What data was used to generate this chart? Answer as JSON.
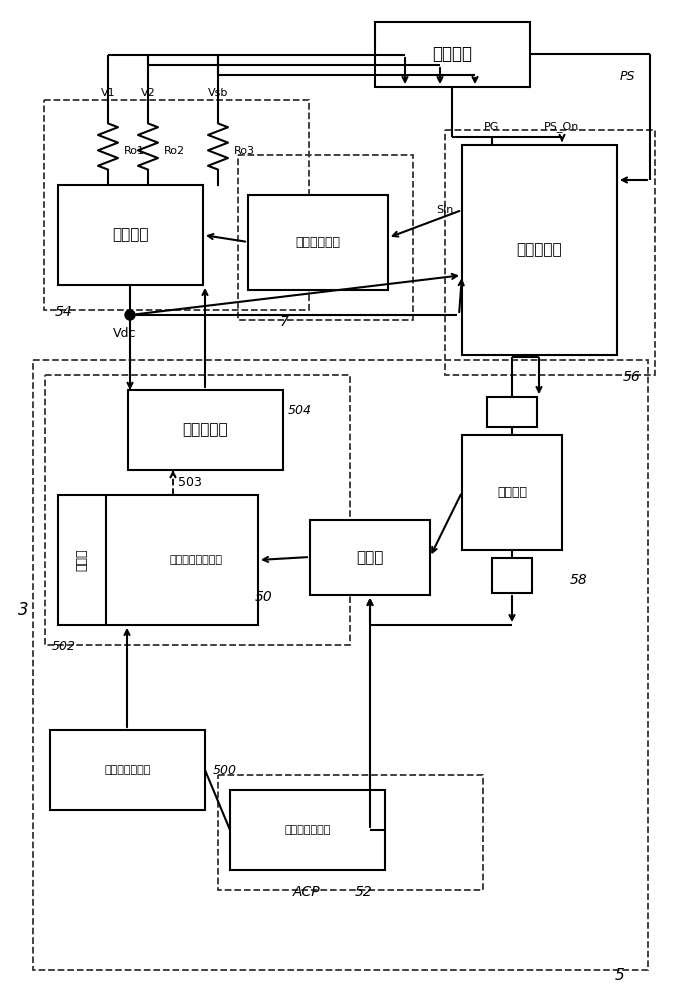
{
  "bg_color": "#ffffff",
  "lc": "#000000",
  "fig_w": 6.81,
  "fig_h": 10.0,
  "dpi": 100,
  "labels": {
    "es": "电子系统",
    "sw": "开关元件",
    "lcm": "线性控制模块",
    "pm": "电源管理器",
    "pc": "电源转换器",
    "pfc": "功率因数校正电路",
    "rect": "整流器",
    "ctrl": "控制器",
    "iso": "隔离单元",
    "emi": "电磁干扰滤波器",
    "ac": "交流电源供应器",
    "v1": "V1",
    "v2": "V2",
    "vsb": "Vsb",
    "ro1": "Ro1",
    "ro2": "Ro2",
    "ro3": "Ro3",
    "vdc": "Vdc",
    "ps": "PS",
    "pg": "PG",
    "ps_on": "PS_On",
    "sin": "Sin",
    "acp": "ACP",
    "n3": "3",
    "n5": "5",
    "n7": "7",
    "n50": "50",
    "n52": "52",
    "n54": "54",
    "n56": "56",
    "n58": "58",
    "n500": "500",
    "n502": "502",
    "n503": "503",
    "n504": "504"
  }
}
